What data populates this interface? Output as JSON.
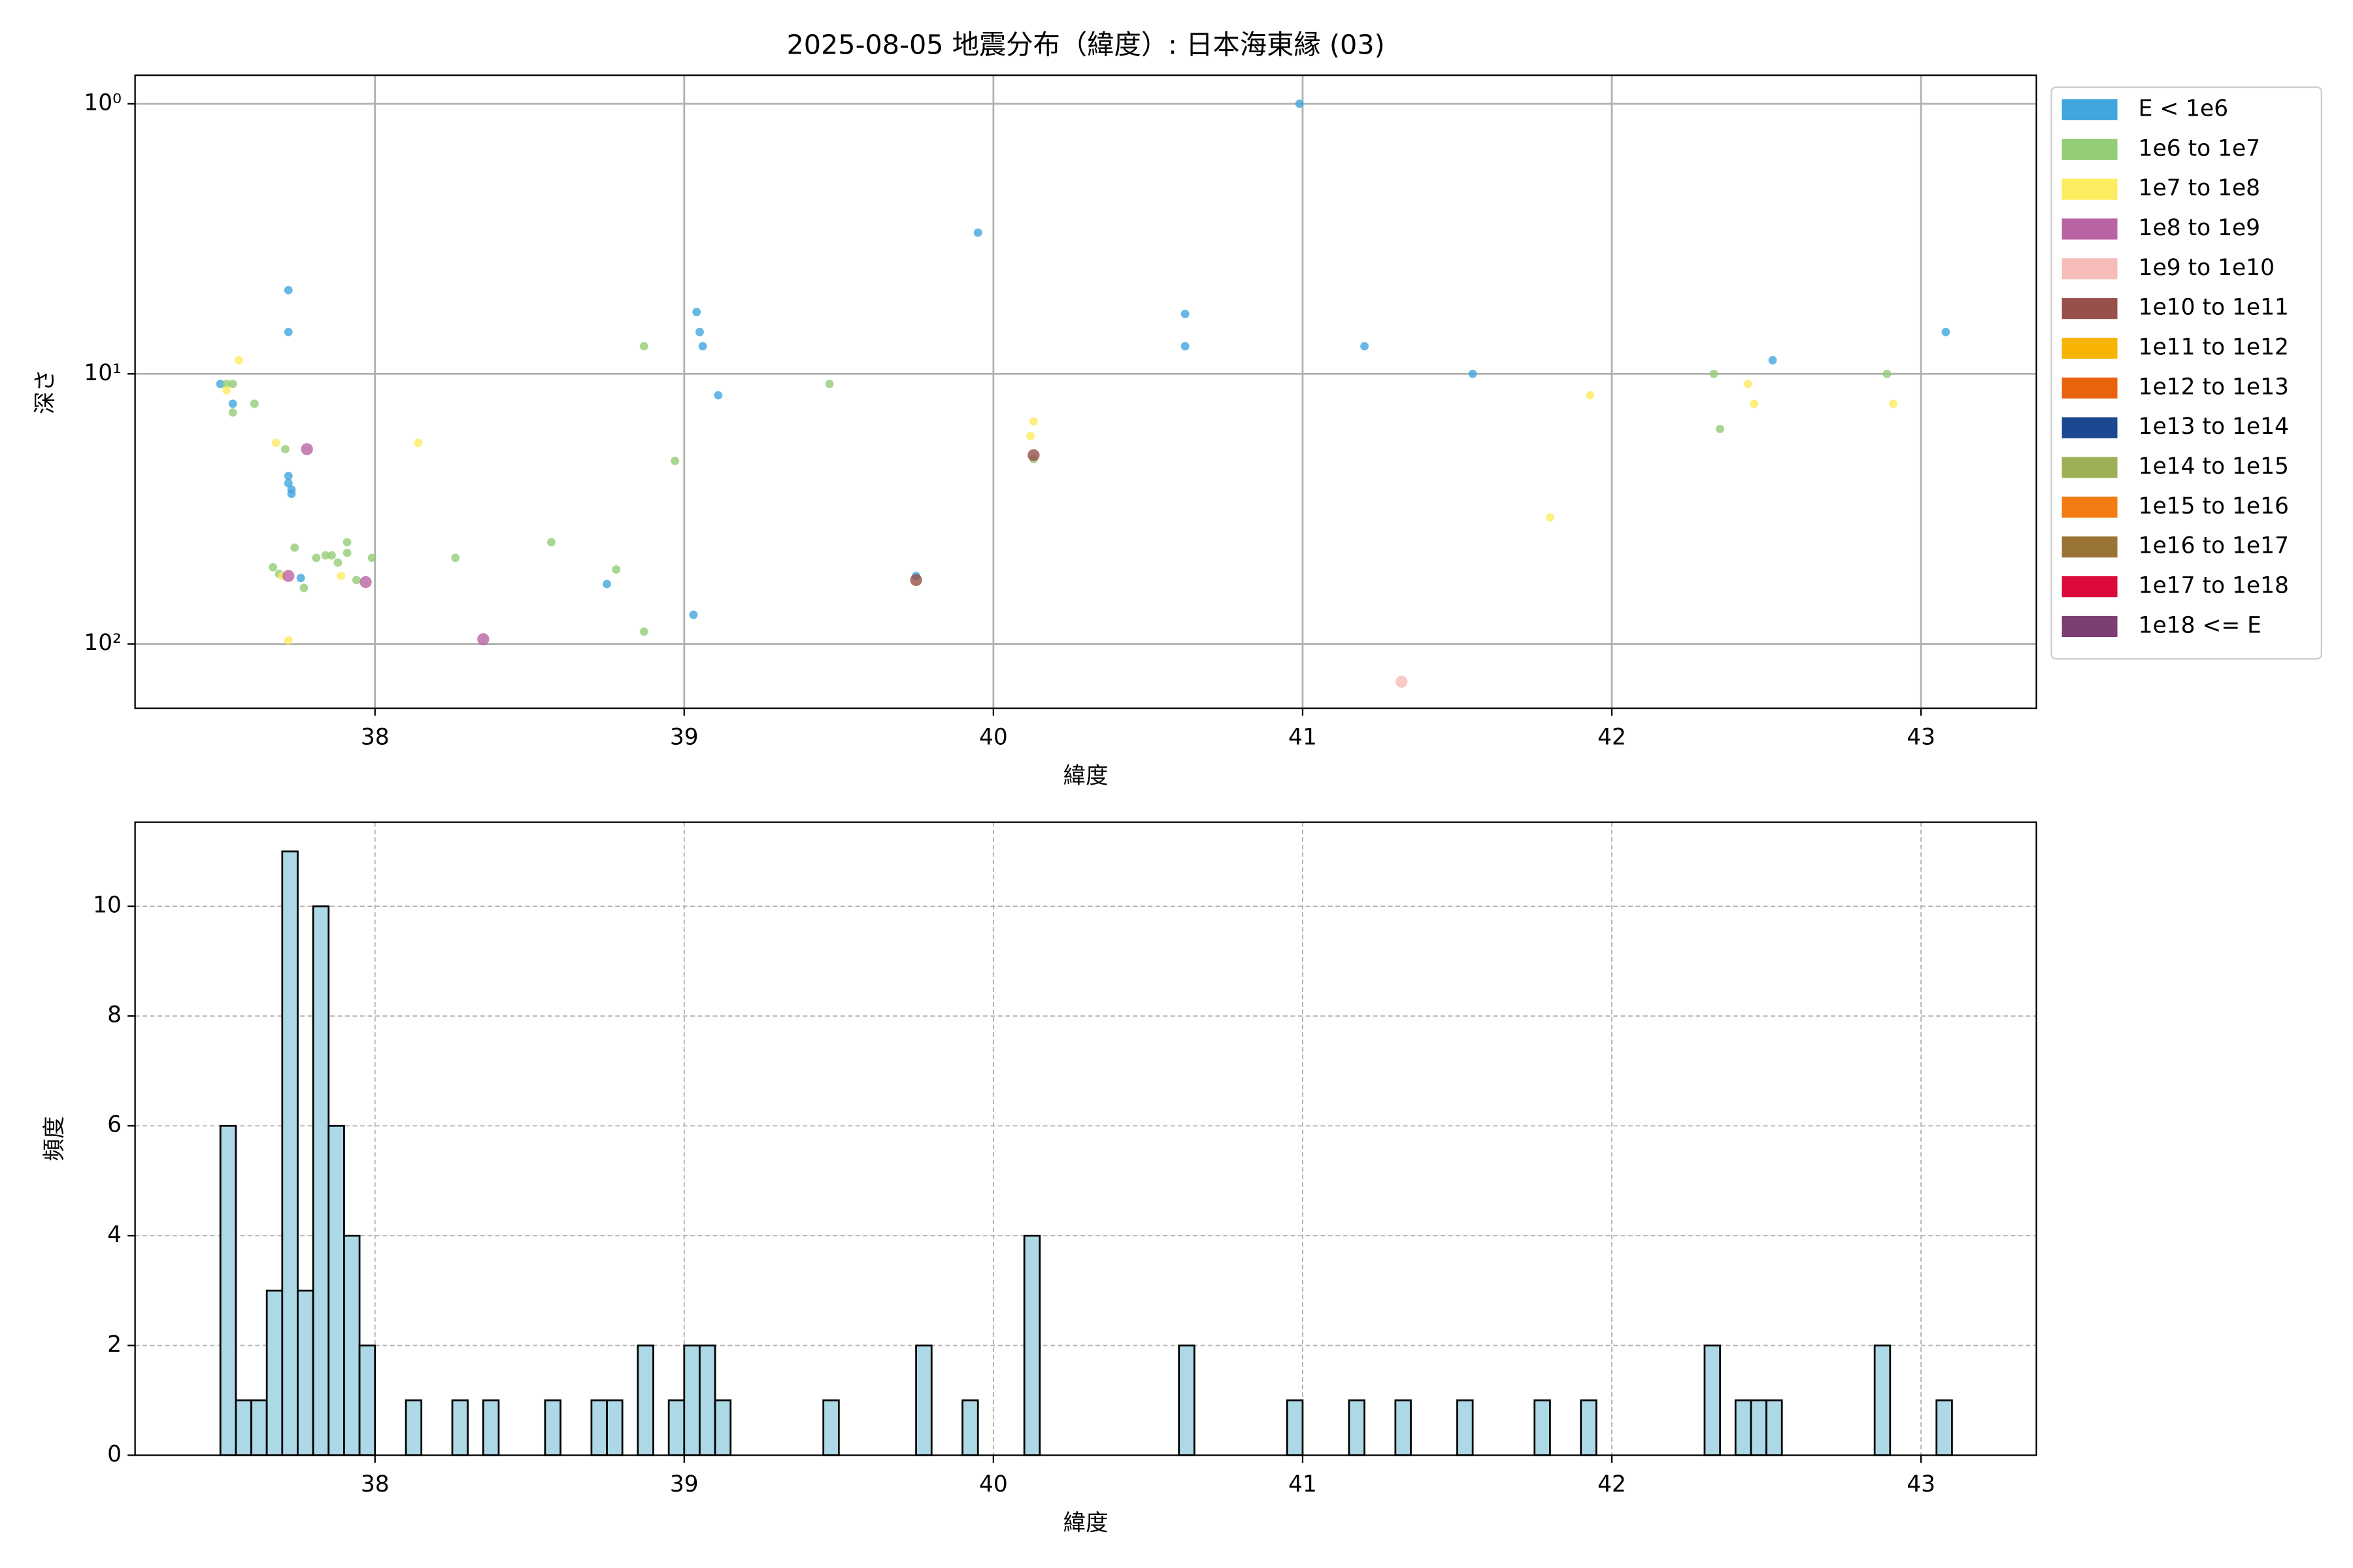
{
  "chart_data": [
    {
      "type": "scatter",
      "title": "2025-08-05 地震分布（緯度）: 日本海東縁 (03)",
      "xlabel": "緯度",
      "ylabel": "深さ",
      "xlim": [
        37.224,
        43.373
      ],
      "xticks": [
        38,
        39,
        40,
        41,
        42,
        43
      ],
      "yscale": "log",
      "ylim": [
        173,
        0.784
      ],
      "yticks": [
        {
          "value": 1,
          "label": "10⁰"
        },
        {
          "value": 10,
          "label": "10¹"
        },
        {
          "value": 100,
          "label": "10²"
        }
      ],
      "grid": true,
      "grid_linestyle": "solid",
      "legend": "outside right",
      "series": [
        {
          "name": "E < 1e6",
          "color": "#41a6de",
          "x": [
            37.5,
            37.72,
            37.72,
            37.54,
            37.72,
            37.72,
            37.73,
            37.73,
            37.76,
            38.75,
            39.04,
            39.05,
            39.06,
            39.11,
            39.03,
            39.75,
            39.95,
            40.99,
            40.62,
            40.62,
            41.2,
            41.55,
            42.52,
            43.08
          ],
          "values": [
            10.9,
            4.9,
            7.0,
            12.9,
            23.9,
            25.4,
            26.8,
            27.8,
            57,
            60,
            5.9,
            7.0,
            7.9,
            12.0,
            78,
            56,
            3.0,
            1.0,
            6.0,
            7.9,
            7.9,
            10,
            8.9,
            7.0
          ]
        },
        {
          "name": "1e6 to 1e7",
          "color": "#93cd76",
          "x": [
            37.52,
            37.54,
            37.54,
            37.61,
            37.71,
            38.87,
            38.97,
            39.47,
            40.13,
            37.67,
            37.69,
            37.74,
            37.77,
            37.81,
            37.84,
            37.86,
            37.88,
            37.91,
            37.91,
            37.94,
            37.99,
            38.26,
            38.57,
            38.78,
            38.87,
            42.33,
            42.35,
            42.89
          ],
          "values": [
            10.9,
            10.9,
            13.9,
            12.9,
            19,
            7.9,
            21,
            10.9,
            20.7,
            52,
            55,
            44,
            62,
            48,
            47,
            47,
            50,
            46,
            42,
            58,
            48,
            48,
            42,
            53,
            90,
            10,
            16,
            10
          ]
        },
        {
          "name": "1e7 to 1e8",
          "color": "#fdeb60",
          "x": [
            37.56,
            37.52,
            37.68,
            38.14,
            37.7,
            37.89,
            37.72,
            40.13,
            40.12,
            41.8,
            41.93,
            42.44,
            42.46,
            42.91
          ],
          "values": [
            8.9,
            11.5,
            18,
            18,
            56,
            56,
            97,
            15,
            17,
            34,
            12,
            10.9,
            12.9,
            12.9
          ]
        },
        {
          "name": "1e8 to 1e9",
          "color": "#b963a4",
          "x": [
            37.78,
            37.72,
            37.97,
            38.35
          ],
          "values": [
            19,
            56,
            59,
            96
          ]
        },
        {
          "name": "1e9 to 1e10",
          "color": "#f5bcb9",
          "x": [
            41.32
          ],
          "values": [
            138
          ]
        },
        {
          "name": "1e10 to 1e11",
          "color": "#975049",
          "x": [
            40.13,
            39.75
          ],
          "values": [
            20,
            58
          ]
        },
        {
          "name": "1e11 to 1e12",
          "color": "#f8b404",
          "x": [],
          "values": []
        },
        {
          "name": "1e12 to 1e13",
          "color": "#e9630c",
          "x": [],
          "values": []
        },
        {
          "name": "1e13 to 1e14",
          "color": "#1c4891",
          "x": [],
          "values": []
        },
        {
          "name": "1e14 to 1e15",
          "color": "#9cb056",
          "x": [],
          "values": []
        },
        {
          "name": "1e15 to 1e16",
          "color": "#f27b12",
          "x": [],
          "values": []
        },
        {
          "name": "1e16 to 1e17",
          "color": "#997434",
          "x": [],
          "values": []
        },
        {
          "name": "1e17 to 1e18",
          "color": "#dc0a3c",
          "x": [],
          "values": []
        },
        {
          "name": "1e18 <= E",
          "color": "#7b3f72",
          "x": [],
          "values": []
        }
      ]
    },
    {
      "type": "histogram",
      "xlabel": "緯度",
      "ylabel": "頻度",
      "color": "#add8e6",
      "xlim": [
        37.224,
        43.373
      ],
      "xticks": [
        38,
        39,
        40,
        41,
        42,
        43
      ],
      "ylim": [
        0,
        11.53
      ],
      "yticks": [
        0,
        2,
        4,
        6,
        8,
        10
      ],
      "grid": true,
      "grid_linestyle": "dashed",
      "bins": [
        37.5,
        37.55,
        37.6,
        37.65,
        37.7,
        37.75,
        37.8,
        37.85,
        37.9,
        37.95,
        38,
        38.05,
        38.1,
        38.15,
        38.2,
        38.25,
        38.3,
        38.35,
        38.4,
        38.45,
        38.5,
        38.55,
        38.6,
        38.65,
        38.7,
        38.75,
        38.8,
        38.85,
        38.9,
        38.95,
        39,
        39.05,
        39.1,
        39.15,
        39.2,
        39.25,
        39.3,
        39.35,
        39.4,
        39.45,
        39.5,
        39.55,
        39.6,
        39.65,
        39.7,
        39.75,
        39.8,
        39.85,
        39.9,
        39.95,
        40,
        40.05,
        40.1,
        40.15,
        40.2,
        40.25,
        40.3,
        40.35,
        40.4,
        40.45,
        40.5,
        40.55,
        40.6,
        40.65,
        40.7,
        40.75,
        40.8,
        40.85,
        40.9,
        40.95,
        41,
        41.05,
        41.1,
        41.15,
        41.2,
        41.25,
        41.3,
        41.35,
        41.4,
        41.45,
        41.5,
        41.55,
        41.6,
        41.65,
        41.7,
        41.75,
        41.8,
        41.85,
        41.9,
        41.95,
        42,
        42.05,
        42.1,
        42.15,
        42.2,
        42.25,
        42.3,
        42.35,
        42.4,
        42.45,
        42.5,
        42.55,
        42.6,
        42.65,
        42.7,
        42.75,
        42.8,
        42.85,
        42.9,
        42.95,
        43,
        43.05,
        43.1
      ],
      "values": [
        6,
        1,
        1,
        3,
        11,
        3,
        10,
        6,
        4,
        2,
        0,
        0,
        1,
        0,
        0,
        1,
        0,
        1,
        0,
        0,
        0,
        1,
        0,
        0,
        1,
        1,
        0,
        2,
        0,
        1,
        2,
        2,
        1,
        0,
        0,
        0,
        0,
        0,
        0,
        1,
        0,
        0,
        0,
        0,
        0,
        2,
        0,
        0,
        1,
        0,
        0,
        0,
        4,
        0,
        0,
        0,
        0,
        0,
        0,
        0,
        0,
        0,
        2,
        0,
        0,
        0,
        0,
        0,
        0,
        1,
        0,
        0,
        0,
        1,
        0,
        0,
        1,
        0,
        0,
        0,
        1,
        0,
        0,
        0,
        0,
        1,
        0,
        0,
        1,
        0,
        0,
        0,
        0,
        0,
        0,
        0,
        2,
        0,
        1,
        1,
        1,
        0,
        0,
        0,
        0,
        0,
        0,
        2,
        0,
        0,
        0,
        1
      ]
    }
  ]
}
